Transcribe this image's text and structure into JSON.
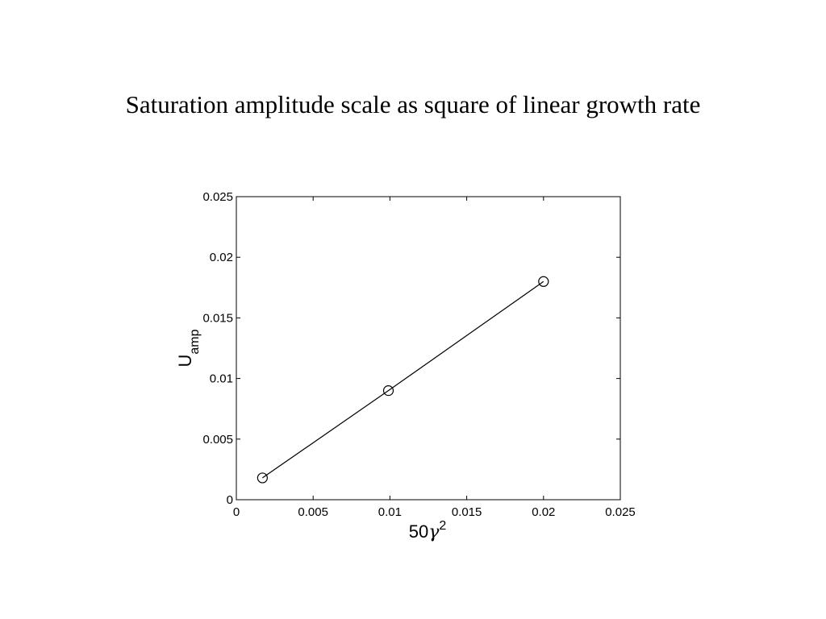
{
  "slide": {
    "title": "Saturation amplitude scale as square of linear growth rate"
  },
  "chart_data": {
    "type": "line",
    "x": [
      0.0017,
      0.0099,
      0.02
    ],
    "series": [
      {
        "values": [
          0.0018,
          0.009,
          0.018
        ],
        "marker": "open-circle",
        "color": "#000000"
      }
    ],
    "xlim": [
      0,
      0.025
    ],
    "ylim": [
      0,
      0.025
    ],
    "xticks": [
      "0",
      "0.005",
      "0.01",
      "0.015",
      "0.02",
      "0.025"
    ],
    "yticks": [
      "0",
      "0.005",
      "0.01",
      "0.015",
      "0.02",
      "0.025"
    ],
    "xlabel": {
      "base": "50",
      "greek": "γ",
      "sup": "2"
    },
    "ylabel": {
      "base": "U",
      "sub": "amp"
    },
    "grid": false
  }
}
